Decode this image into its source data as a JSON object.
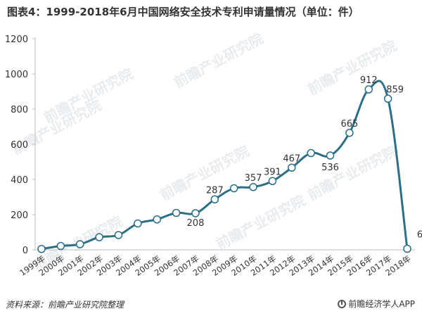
{
  "title": "图表4：1999-2018年6月中国网络安全技术专利申请量情况（单位：件）",
  "source": "资料来源：前瞻产业研究院整理",
  "brand": "前瞻经济学人APP",
  "watermark": "前瞻产业研究院",
  "colors": {
    "line": "#2a6f86",
    "marker_fill": "#ffffff",
    "text": "#333333"
  },
  "chart_data": {
    "type": "line",
    "title": "图表4：1999-2018年6月中国网络安全技术专利申请量情况（单位：件）",
    "categories": [
      "1999年",
      "2000年",
      "2001年",
      "2002年",
      "2003年",
      "2004年",
      "2005年",
      "2006年",
      "2007年",
      "2008年",
      "2009年",
      "2010年",
      "2011年",
      "2012年",
      "2013年",
      "2014年",
      "2015年",
      "2016年",
      "2017年",
      "2018年"
    ],
    "values": [
      5,
      22,
      32,
      72,
      84,
      150,
      173,
      210,
      208,
      287,
      350,
      357,
      391,
      467,
      550,
      536,
      665,
      912,
      859,
      6
    ],
    "labeled_indices": [
      8,
      9,
      11,
      12,
      13,
      15,
      16,
      17,
      18,
      19
    ],
    "ylim": [
      0,
      1200
    ],
    "yticks": [
      0,
      200,
      400,
      600,
      800,
      1000,
      1200
    ],
    "xlabel": "",
    "ylabel": "",
    "grid": false,
    "legend": "none"
  }
}
